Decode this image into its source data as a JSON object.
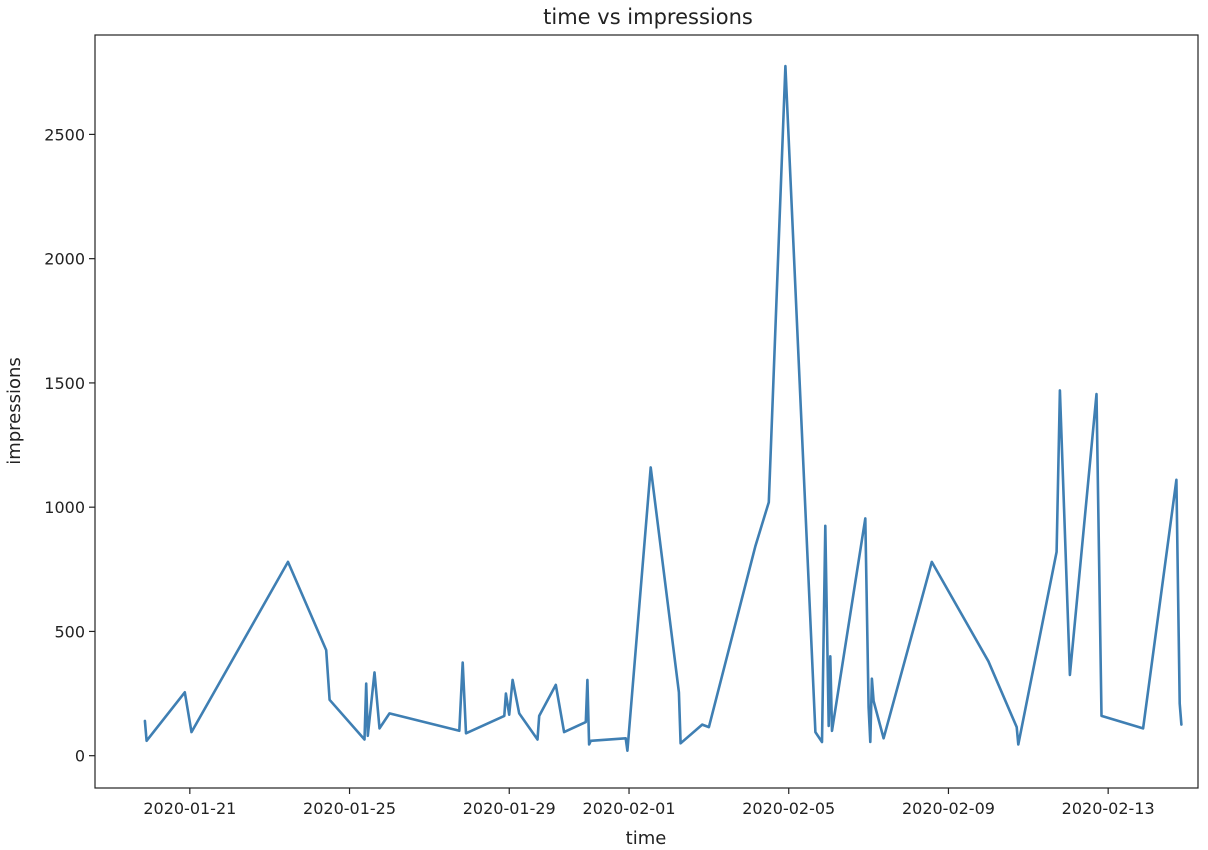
{
  "chart_data": {
    "type": "line",
    "title": "time vs impressions",
    "xlabel": "time",
    "ylabel": "impressions",
    "xlim": [
      "2020-01-18T15:00",
      "2020-02-15T06:00"
    ],
    "ylim": [
      -130,
      2900
    ],
    "x_ticks": [
      "2020-01-21",
      "2020-01-25",
      "2020-01-29",
      "2020-02-01",
      "2020-02-05",
      "2020-02-09",
      "2020-02-13"
    ],
    "y_ticks": [
      0,
      500,
      1000,
      1500,
      2000,
      2500
    ],
    "grid": false,
    "colors": {
      "line": "#3f7fb3"
    },
    "series": [
      {
        "values": [
          [
            "2020-01-19T21:00",
            140
          ],
          [
            "2020-01-19T22:00",
            60
          ],
          [
            "2020-01-20T21:00",
            255
          ],
          [
            "2020-01-21T01:00",
            95
          ],
          [
            "2020-01-23T11:00",
            780
          ],
          [
            "2020-01-24T10:00",
            425
          ],
          [
            "2020-01-24T12:00",
            225
          ],
          [
            "2020-01-25T09:00",
            65
          ],
          [
            "2020-01-25T10:00",
            290
          ],
          [
            "2020-01-25T11:00",
            80
          ],
          [
            "2020-01-25T15:00",
            335
          ],
          [
            "2020-01-25T18:00",
            110
          ],
          [
            "2020-01-26T00:00",
            170
          ],
          [
            "2020-01-27T18:00",
            100
          ],
          [
            "2020-01-27T20:00",
            375
          ],
          [
            "2020-01-27T22:00",
            90
          ],
          [
            "2020-01-28T21:00",
            160
          ],
          [
            "2020-01-28T22:00",
            250
          ],
          [
            "2020-01-29T00:00",
            165
          ],
          [
            "2020-01-29T02:00",
            305
          ],
          [
            "2020-01-29T06:00",
            170
          ],
          [
            "2020-01-29T17:00",
            65
          ],
          [
            "2020-01-29T18:00",
            160
          ],
          [
            "2020-01-30T04:00",
            285
          ],
          [
            "2020-01-30T09:00",
            95
          ],
          [
            "2020-01-30T22:00",
            135
          ],
          [
            "2020-01-30T23:00",
            305
          ],
          [
            "2020-01-31T00:00",
            45
          ],
          [
            "2020-01-31T01:00",
            60
          ],
          [
            "2020-01-31T22:00",
            70
          ],
          [
            "2020-01-31T23:00",
            20
          ],
          [
            "2020-02-01T13:00",
            1160
          ],
          [
            "2020-02-02T06:00",
            255
          ],
          [
            "2020-02-02T07:00",
            50
          ],
          [
            "2020-02-02T20:00",
            125
          ],
          [
            "2020-02-03T00:00",
            115
          ],
          [
            "2020-02-04T04:00",
            845
          ],
          [
            "2020-02-04T12:00",
            1020
          ],
          [
            "2020-02-04T22:00",
            2775
          ],
          [
            "2020-02-05T16:00",
            95
          ],
          [
            "2020-02-05T20:00",
            55
          ],
          [
            "2020-02-05T22:00",
            925
          ],
          [
            "2020-02-06T00:00",
            120
          ],
          [
            "2020-02-06T01:00",
            400
          ],
          [
            "2020-02-06T02:00",
            100
          ],
          [
            "2020-02-06T22:00",
            955
          ],
          [
            "2020-02-07T00:00",
            195
          ],
          [
            "2020-02-07T01:00",
            55
          ],
          [
            "2020-02-07T02:00",
            310
          ],
          [
            "2020-02-07T03:00",
            220
          ],
          [
            "2020-02-07T09:00",
            70
          ],
          [
            "2020-02-08T14:00",
            780
          ],
          [
            "2020-02-10T00:00",
            380
          ],
          [
            "2020-02-10T17:00",
            115
          ],
          [
            "2020-02-10T18:00",
            45
          ],
          [
            "2020-02-11T17:00",
            820
          ],
          [
            "2020-02-11T19:00",
            1470
          ],
          [
            "2020-02-12T01:00",
            325
          ],
          [
            "2020-02-12T17:00",
            1455
          ],
          [
            "2020-02-12T20:00",
            160
          ],
          [
            "2020-02-13T21:00",
            110
          ],
          [
            "2020-02-14T17:00",
            1110
          ],
          [
            "2020-02-14T19:00",
            210
          ],
          [
            "2020-02-14T20:00",
            125
          ]
        ]
      }
    ]
  }
}
